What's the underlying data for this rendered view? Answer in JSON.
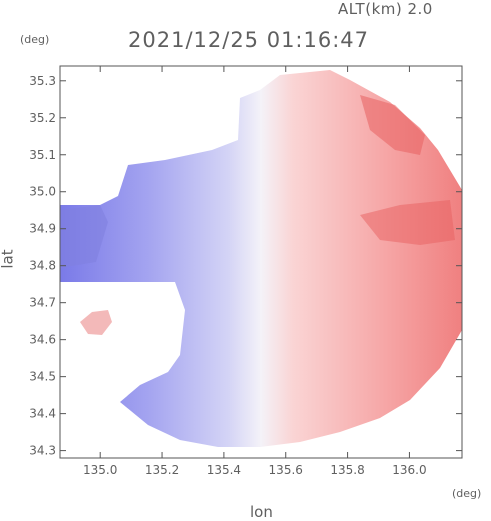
{
  "header": {
    "altitude_label": "ALT(km) 2.0",
    "timestamp": "2021/12/25 01:16:47"
  },
  "colors": {
    "frame": "#555555",
    "approaching": "#7a7ae8",
    "receding": "#f07e7e",
    "neutral": "#f2f2f8"
  },
  "chart_data": {
    "type": "heatmap",
    "title": "2021/12/25 01:16:47",
    "subtitle": "ALT(km) 2.0",
    "xlabel": "lon",
    "ylabel": "lat",
    "x_unit": "(deg)",
    "y_unit": "(deg)",
    "xlim": [
      134.87,
      136.17
    ],
    "ylim": [
      34.28,
      35.34
    ],
    "x_ticks": [
      {
        "value": 135.0,
        "label": "135.0"
      },
      {
        "value": 135.2,
        "label": "135.2"
      },
      {
        "value": 135.4,
        "label": "135.4"
      },
      {
        "value": 135.6,
        "label": "135.6"
      },
      {
        "value": 135.8,
        "label": "135.8"
      },
      {
        "value": 136.0,
        "label": "136.0"
      }
    ],
    "y_ticks": [
      {
        "value": 34.3,
        "label": "34.3"
      },
      {
        "value": 34.4,
        "label": "34.4"
      },
      {
        "value": 34.5,
        "label": "34.5"
      },
      {
        "value": 34.6,
        "label": "34.6"
      },
      {
        "value": 34.7,
        "label": "34.7"
      },
      {
        "value": 34.8,
        "label": "34.8"
      },
      {
        "value": 34.9,
        "label": "34.9"
      },
      {
        "value": 35.0,
        "label": "35.0"
      },
      {
        "value": 35.1,
        "label": "35.1"
      },
      {
        "value": 35.2,
        "label": "35.2"
      },
      {
        "value": 35.3,
        "label": "35.3"
      }
    ],
    "radar_center": {
      "lon": 135.5,
      "lat": 34.69
    },
    "radar_range_deg": 0.66,
    "grid": false,
    "legend": "none",
    "colormap": "blue (toward radar) - white - red (away from radar)"
  }
}
